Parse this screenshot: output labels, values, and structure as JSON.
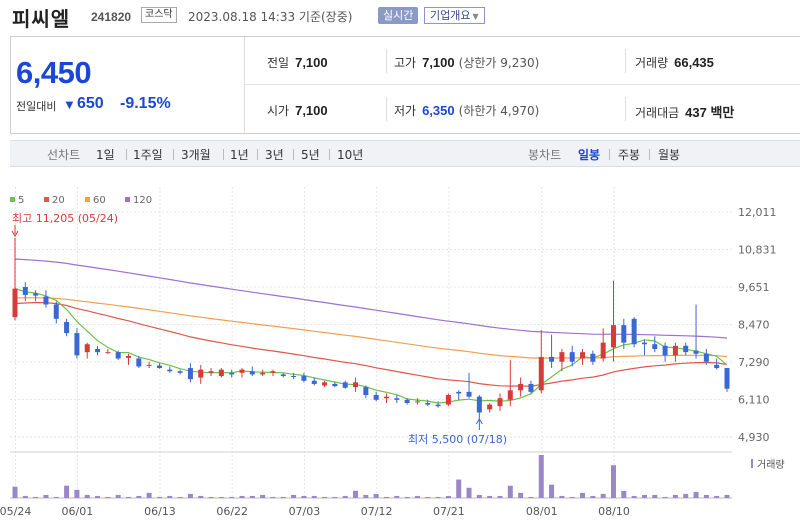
{
  "header": {
    "name": "피씨엘",
    "code": "241820",
    "market": "코스닥",
    "datetime": "2023.08.18 14:33 기준(장중)",
    "realtime_label": "실시간",
    "company_label": "기업개요"
  },
  "summary": {
    "current_price": "6,450",
    "change_label": "전일대비",
    "change_value": "650",
    "change_rate": "-9.15%",
    "stats": {
      "prev_close": {
        "label": "전일",
        "value": "7,100"
      },
      "high": {
        "label": "고가",
        "value": "7,100",
        "sub": "(상한가 9,230)"
      },
      "volume": {
        "label": "거래량",
        "value": "66,435"
      },
      "open": {
        "label": "시가",
        "value": "7,100"
      },
      "low": {
        "label": "저가",
        "value": "6,350",
        "sub": "(하한가 4,970)"
      },
      "amount": {
        "label": "거래대금",
        "value": "437 백만"
      }
    }
  },
  "toolbar": {
    "line_chart_label": "선차트",
    "periods": [
      "1일",
      "1주일",
      "3개월",
      "1년",
      "3년",
      "5년",
      "10년"
    ],
    "candle_chart_label": "봉차트",
    "candle_periods": [
      "일봉",
      "주봉",
      "월봉"
    ],
    "active_candle": "일봉"
  },
  "chart_data": {
    "type": "candlestick",
    "legend": [
      {
        "name": "5",
        "color": "#6cc24a"
      },
      {
        "name": "20",
        "color": "#e0584a"
      },
      {
        "name": "60",
        "color": "#f0a050"
      },
      {
        "name": "120",
        "color": "#a070d0"
      }
    ],
    "y_ticks": [
      "12,011",
      "10,831",
      "9,651",
      "8,470",
      "7,290",
      "6,110",
      "4,930"
    ],
    "ylim": [
      4930,
      12011
    ],
    "x_ticks": [
      "05/24",
      "06/01",
      "06/13",
      "06/22",
      "07/03",
      "07/12",
      "07/21",
      "08/01",
      "08/10"
    ],
    "high_annotation": "최고 11,205 (05/24)",
    "low_annotation": "최저 5,500 (07/18)",
    "volume_label": "거래량",
    "colors": {
      "up": "#d83a3a",
      "down": "#3b67d4",
      "volume": "#9a87c8"
    },
    "candles": [
      {
        "o": 8700,
        "h": 11205,
        "l": 8600,
        "c": 9600
      },
      {
        "o": 9650,
        "h": 9800,
        "l": 9200,
        "c": 9400
      },
      {
        "o": 9450,
        "h": 9550,
        "l": 9200,
        "c": 9380
      },
      {
        "o": 9350,
        "h": 9550,
        "l": 9000,
        "c": 9100
      },
      {
        "o": 9100,
        "h": 9200,
        "l": 8500,
        "c": 8650
      },
      {
        "o": 8550,
        "h": 8650,
        "l": 8100,
        "c": 8200
      },
      {
        "o": 8200,
        "h": 8350,
        "l": 7400,
        "c": 7500
      },
      {
        "o": 7600,
        "h": 7900,
        "l": 7400,
        "c": 7850
      },
      {
        "o": 7700,
        "h": 7800,
        "l": 7500,
        "c": 7600
      },
      {
        "o": 7600,
        "h": 7700,
        "l": 7550,
        "c": 7600
      },
      {
        "o": 7600,
        "h": 7650,
        "l": 7350,
        "c": 7400
      },
      {
        "o": 7420,
        "h": 7550,
        "l": 7200,
        "c": 7480
      },
      {
        "o": 7400,
        "h": 7480,
        "l": 7100,
        "c": 7150
      },
      {
        "o": 7200,
        "h": 7300,
        "l": 7100,
        "c": 7200
      },
      {
        "o": 7180,
        "h": 7250,
        "l": 7080,
        "c": 7100
      },
      {
        "o": 7050,
        "h": 7150,
        "l": 6950,
        "c": 7000
      },
      {
        "o": 7000,
        "h": 7050,
        "l": 6900,
        "c": 6950
      },
      {
        "o": 7100,
        "h": 7250,
        "l": 6650,
        "c": 6750
      },
      {
        "o": 6800,
        "h": 7200,
        "l": 6600,
        "c": 7050
      },
      {
        "o": 6950,
        "h": 7100,
        "l": 6850,
        "c": 7000
      },
      {
        "o": 6850,
        "h": 7100,
        "l": 6800,
        "c": 7050
      },
      {
        "o": 6950,
        "h": 7050,
        "l": 6800,
        "c": 6900
      },
      {
        "o": 6950,
        "h": 7100,
        "l": 6800,
        "c": 7050
      },
      {
        "o": 7000,
        "h": 7150,
        "l": 6850,
        "c": 6900
      },
      {
        "o": 6900,
        "h": 7050,
        "l": 6850,
        "c": 6950
      },
      {
        "o": 6950,
        "h": 7050,
        "l": 6850,
        "c": 7000
      },
      {
        "o": 6900,
        "h": 6950,
        "l": 6800,
        "c": 6850
      },
      {
        "o": 6850,
        "h": 6950,
        "l": 6750,
        "c": 6820
      },
      {
        "o": 6850,
        "h": 6950,
        "l": 6650,
        "c": 6700
      },
      {
        "o": 6700,
        "h": 6800,
        "l": 6550,
        "c": 6600
      },
      {
        "o": 6550,
        "h": 6700,
        "l": 6500,
        "c": 6650
      },
      {
        "o": 6600,
        "h": 6650,
        "l": 6500,
        "c": 6530
      },
      {
        "o": 6650,
        "h": 6700,
        "l": 6450,
        "c": 6480
      },
      {
        "o": 6500,
        "h": 6800,
        "l": 6350,
        "c": 6650
      },
      {
        "o": 6500,
        "h": 6550,
        "l": 6150,
        "c": 6250
      },
      {
        "o": 6250,
        "h": 6350,
        "l": 6050,
        "c": 6100
      },
      {
        "o": 6150,
        "h": 6300,
        "l": 6000,
        "c": 6200
      },
      {
        "o": 6150,
        "h": 6250,
        "l": 6000,
        "c": 6100
      },
      {
        "o": 6100,
        "h": 6150,
        "l": 5950,
        "c": 6000
      },
      {
        "o": 6050,
        "h": 6150,
        "l": 5950,
        "c": 6050
      },
      {
        "o": 6000,
        "h": 6100,
        "l": 5900,
        "c": 5950
      },
      {
        "o": 5950,
        "h": 6050,
        "l": 5850,
        "c": 5900
      },
      {
        "o": 5950,
        "h": 6300,
        "l": 5900,
        "c": 6250
      },
      {
        "o": 6350,
        "h": 6400,
        "l": 6100,
        "c": 6300
      },
      {
        "o": 6350,
        "h": 6950,
        "l": 6150,
        "c": 6200
      },
      {
        "o": 6200,
        "h": 6250,
        "l": 5500,
        "c": 5700
      },
      {
        "o": 5800,
        "h": 6000,
        "l": 5700,
        "c": 5950
      },
      {
        "o": 5900,
        "h": 6300,
        "l": 5750,
        "c": 6150
      },
      {
        "o": 6100,
        "h": 7350,
        "l": 5900,
        "c": 6400
      },
      {
        "o": 6400,
        "h": 6800,
        "l": 6200,
        "c": 6600
      },
      {
        "o": 6600,
        "h": 6700,
        "l": 6300,
        "c": 6350
      },
      {
        "o": 6400,
        "h": 8300,
        "l": 6300,
        "c": 7450
      },
      {
        "o": 7450,
        "h": 8150,
        "l": 7100,
        "c": 7300
      },
      {
        "o": 7300,
        "h": 7700,
        "l": 7000,
        "c": 7600
      },
      {
        "o": 7600,
        "h": 7800,
        "l": 7150,
        "c": 7300
      },
      {
        "o": 7400,
        "h": 7700,
        "l": 7200,
        "c": 7600
      },
      {
        "o": 7550,
        "h": 7650,
        "l": 7200,
        "c": 7300
      },
      {
        "o": 7400,
        "h": 8350,
        "l": 7300,
        "c": 7900
      },
      {
        "o": 7750,
        "h": 9850,
        "l": 7300,
        "c": 8450
      },
      {
        "o": 8450,
        "h": 8650,
        "l": 7700,
        "c": 7900
      },
      {
        "o": 8650,
        "h": 8700,
        "l": 7750,
        "c": 7850
      },
      {
        "o": 7900,
        "h": 8000,
        "l": 7500,
        "c": 7850
      },
      {
        "o": 7850,
        "h": 8100,
        "l": 7600,
        "c": 7700
      },
      {
        "o": 7800,
        "h": 7900,
        "l": 7300,
        "c": 7500
      },
      {
        "o": 7500,
        "h": 7900,
        "l": 7300,
        "c": 7800
      },
      {
        "o": 7800,
        "h": 7900,
        "l": 7500,
        "c": 7600
      },
      {
        "o": 7650,
        "h": 9100,
        "l": 7400,
        "c": 7550
      },
      {
        "o": 7550,
        "h": 7700,
        "l": 7200,
        "c": 7300
      },
      {
        "o": 7200,
        "h": 7400,
        "l": 7050,
        "c": 7100
      },
      {
        "o": 7100,
        "h": 7100,
        "l": 6350,
        "c": 6450
      }
    ],
    "volumes": [
      11,
      2,
      1,
      3,
      1,
      12,
      8,
      3,
      2,
      1,
      3,
      1,
      2,
      5,
      1,
      2,
      1,
      4,
      2,
      1,
      1,
      1,
      2,
      2,
      3,
      1,
      1,
      3,
      2,
      2,
      1,
      1,
      2,
      7,
      3,
      4,
      1,
      2,
      1,
      2,
      1,
      1,
      2,
      18,
      10,
      3,
      2,
      2,
      12,
      5,
      1,
      42,
      13,
      2,
      1,
      5,
      2,
      4,
      32,
      7,
      2,
      3,
      3,
      1,
      3,
      4,
      6,
      3,
      2,
      3
    ]
  }
}
